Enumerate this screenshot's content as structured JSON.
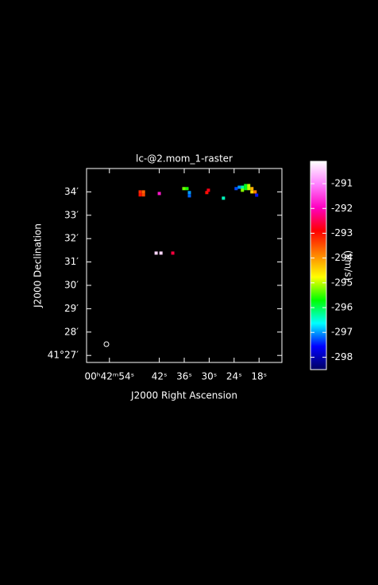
{
  "chart_data": {
    "type": "raster",
    "title": "lc-@2.mom_1-raster",
    "xlabel": "J2000 Right Ascension",
    "ylabel": "J2000 Declination",
    "xlim": [
      59.5,
      12.5
    ],
    "ylim": [
      26.7,
      35.0
    ],
    "xticks": [
      {
        "value": 54,
        "label": "00ʰ42ᵐ54ˢ"
      },
      {
        "value": 42,
        "label": "42ˢ"
      },
      {
        "value": 36,
        "label": "36ˢ"
      },
      {
        "value": 30,
        "label": "30ˢ"
      },
      {
        "value": 24,
        "label": "24ˢ"
      },
      {
        "value": 18,
        "label": "18ˢ"
      }
    ],
    "yticks": [
      {
        "value": 34,
        "label": "34′"
      },
      {
        "value": 33,
        "label": "33′"
      },
      {
        "value": 32,
        "label": "32′"
      },
      {
        "value": 31,
        "label": "31′"
      },
      {
        "value": 30,
        "label": "30′"
      },
      {
        "value": 29,
        "label": "29′"
      },
      {
        "value": 28,
        "label": "28′"
      },
      {
        "value": 27,
        "label": "41°27′"
      }
    ],
    "colorbar": {
      "label": "(km/s)",
      "clim": [
        -298.5,
        -290.1
      ],
      "ticks": [
        -291,
        -292,
        -293,
        -294,
        -295,
        -296,
        -297,
        -298
      ],
      "colormap": [
        "#000060",
        "#0000ff",
        "#00ffff",
        "#00ff00",
        "#ffff00",
        "#ff8000",
        "#ff0000",
        "#ff00c0",
        "#ff80ff",
        "#ffffff"
      ]
    },
    "points": {
      "x": [
        46.6,
        45.8,
        46.6,
        45.8,
        42.0,
        36.1,
        35.33,
        34.76,
        34.76,
        30.57,
        30.19,
        26.57,
        23.52,
        22.76,
        22.0,
        22.0,
        21.24,
        21.24,
        20.48,
        20.48,
        19.71,
        19.71,
        18.95,
        18.57,
        42.76,
        41.6,
        38.76
      ],
      "y": [
        34.0,
        34.0,
        33.87,
        33.87,
        33.93,
        34.14,
        34.14,
        33.97,
        33.83,
        33.97,
        34.07,
        33.73,
        34.14,
        34.2,
        34.2,
        34.07,
        34.27,
        34.14,
        34.27,
        34.14,
        34.14,
        34.0,
        34.0,
        33.86,
        31.38,
        31.38,
        31.38
      ],
      "values": [
        -293.2,
        -293.6,
        -293.0,
        -293.4,
        -291.8,
        -295.3,
        -295.6,
        -297.0,
        -297.2,
        -293.0,
        -292.8,
        -296.4,
        -297.3,
        -297.0,
        -296.3,
        -295.2,
        -295.8,
        -295.8,
        -295.0,
        -295.0,
        -294.2,
        -294.5,
        -293.8,
        -297.5,
        -290.4,
        -290.4,
        -292.6
      ]
    }
  }
}
